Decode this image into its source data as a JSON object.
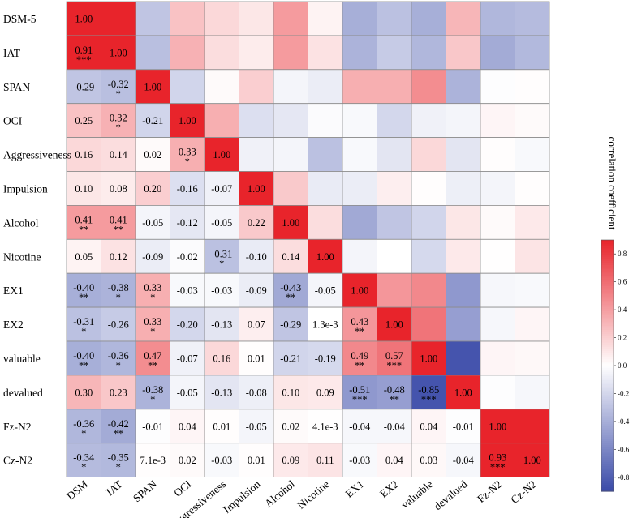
{
  "chart_data": {
    "type": "heatmap",
    "title": "",
    "colorbar_label": "correlation coefficient",
    "row_labels": [
      "DSM-5",
      "IAT",
      "SPAN",
      "OCI",
      "Aggressiveness",
      "Impulsion",
      "Alcohol",
      "Nicotine",
      "EX1",
      "EX2",
      "valuable",
      "devalued",
      "Fz-N2",
      "Cz-N2"
    ],
    "col_labels": [
      "DSM",
      "IAT",
      "SPAN",
      "OCI",
      "Aggressiveness",
      "Impulsion",
      "Alcohol",
      "Nicotine",
      "EX1",
      "EX2",
      "valuable",
      "devalued",
      "Fz-N2",
      "Cz-N2"
    ],
    "value_range": [
      -0.9,
      0.9
    ],
    "colorbar_ticks": [
      "0.8",
      "0.6",
      "0.4",
      "0.2",
      "0.0",
      "-0.2",
      "-0.4",
      "-0.6",
      "-0.8"
    ],
    "colorbar_tick_values": [
      0.8,
      0.6,
      0.4,
      0.2,
      0.0,
      -0.2,
      -0.4,
      -0.6,
      -0.8
    ],
    "colors": {
      "positive": "#e8242b",
      "negative": "#3a4aa8",
      "zero": "#ffffff",
      "grid": "#8c8c8c"
    },
    "lower_labels": [
      [
        "1.00"
      ],
      [
        "0.91",
        "1.00"
      ],
      [
        "-0.29",
        "-0.32",
        "1.00"
      ],
      [
        "0.25",
        "0.32",
        "-0.21",
        "1.00"
      ],
      [
        "0.16",
        "0.14",
        "0.02",
        "0.33",
        "1.00"
      ],
      [
        "0.10",
        "0.08",
        "0.20",
        "-0.16",
        "-0.07",
        "1.00"
      ],
      [
        "0.41",
        "0.41",
        "-0.05",
        "-0.12",
        "-0.05",
        "0.22",
        "1.00"
      ],
      [
        "0.05",
        "0.12",
        "-0.09",
        "-0.02",
        "-0.31",
        "-0.10",
        "0.14",
        "1.00"
      ],
      [
        "-0.40",
        "-0.38",
        "0.33",
        "-0.03",
        "-0.03",
        "-0.09",
        "-0.43",
        "-0.05",
        "1.00"
      ],
      [
        "-0.31",
        "-0.26",
        "0.33",
        "-0.20",
        "-0.13",
        "0.07",
        "-0.29",
        "1.3e-3",
        "0.43",
        "1.00"
      ],
      [
        "-0.40",
        "-0.36",
        "0.47",
        "-0.07",
        "0.16",
        "0.01",
        "-0.21",
        "-0.19",
        "0.49",
        "0.57",
        "1.00"
      ],
      [
        "0.30",
        "0.23",
        "-0.38",
        "-0.05",
        "-0.13",
        "-0.08",
        "0.10",
        "0.09",
        "-0.51",
        "-0.48",
        "-0.85",
        "1.00"
      ],
      [
        "-0.36",
        "-0.42",
        "-0.01",
        "0.04",
        "0.01",
        "-0.05",
        "0.02",
        "4.1e-3",
        "-0.04",
        "-0.04",
        "0.04",
        "-0.01",
        "1.00"
      ],
      [
        "-0.34",
        "-0.35",
        "7.1e-3",
        "0.02",
        "-0.03",
        "0.01",
        "0.09",
        "0.11",
        "-0.03",
        "0.04",
        "0.03",
        "-0.04",
        "0.93",
        "1.00"
      ]
    ],
    "lower_stars": [
      [
        ""
      ],
      [
        "***",
        ""
      ],
      [
        "",
        "*",
        ""
      ],
      [
        "",
        "*",
        "",
        ""
      ],
      [
        "",
        "",
        "",
        "*",
        ""
      ],
      [
        "",
        "",
        "",
        "",
        "",
        ""
      ],
      [
        "**",
        "**",
        "",
        "",
        "",
        "",
        ""
      ],
      [
        "",
        "",
        "",
        "",
        "*",
        "",
        "",
        ""
      ],
      [
        "**",
        "*",
        "*",
        "",
        "",
        "",
        "**",
        "",
        ""
      ],
      [
        "*",
        "",
        "*",
        "",
        "",
        "",
        "",
        "",
        "**",
        ""
      ],
      [
        "**",
        "*",
        "**",
        "",
        "",
        "",
        "",
        "",
        "**",
        "***",
        ""
      ],
      [
        "",
        "",
        "*",
        "",
        "",
        "",
        "",
        "",
        "***",
        "**",
        "***",
        ""
      ],
      [
        "*",
        "**",
        "",
        "",
        "",
        "",
        "",
        "",
        "",
        "",
        "",
        "",
        ""
      ],
      [
        "*",
        "*",
        "",
        "",
        "",
        "",
        "",
        "",
        "",
        "",
        "",
        "",
        "***",
        ""
      ]
    ]
  }
}
